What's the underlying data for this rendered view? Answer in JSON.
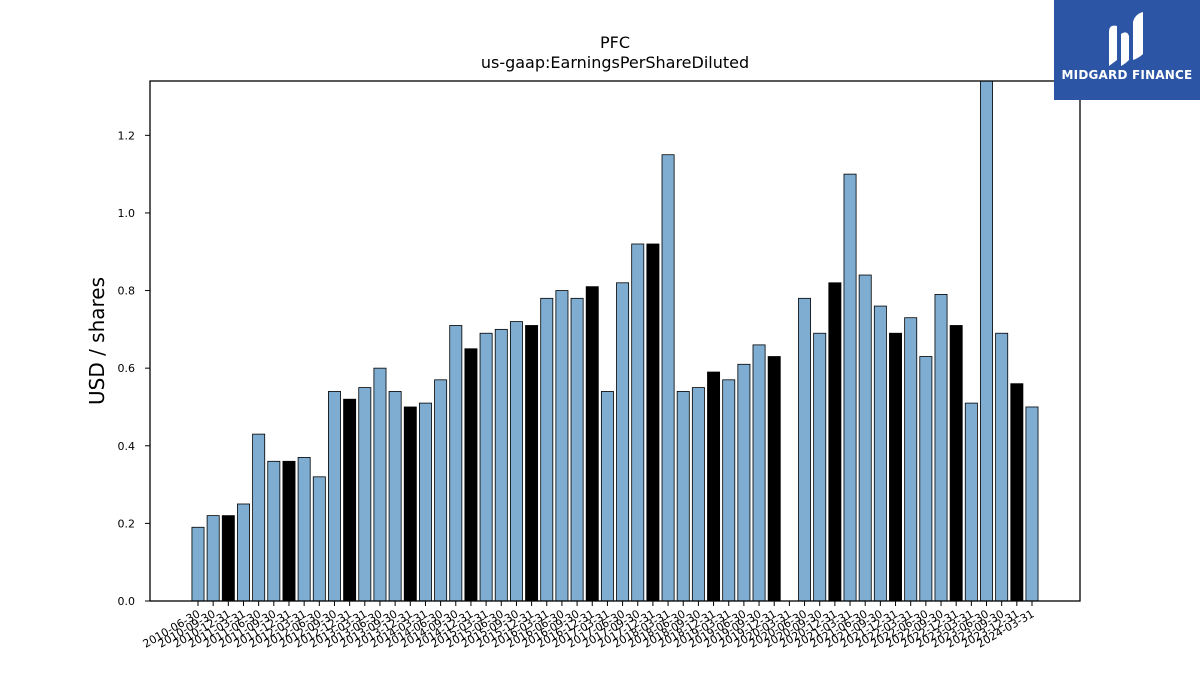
{
  "chart_data": {
    "type": "bar",
    "title": "PFC",
    "subtitle": "us-gaap:EarningsPerShareDiluted",
    "xlabel": "",
    "ylabel": "USD / shares",
    "ylim": [
      0,
      1.34
    ],
    "yticks": [
      "0.0",
      "0.2",
      "0.4",
      "0.6",
      "0.8",
      "1.0",
      "1.2"
    ],
    "grid": false,
    "legend": "none",
    "colors": {
      "quarter": "#7eadd1",
      "annual": "#000000"
    },
    "categories": [
      "2010-06-30",
      "2010-09-30",
      "2010-12-31",
      "2011-03-31",
      "2011-06-30",
      "2011-09-30",
      "2011-12-31",
      "2012-03-31",
      "2012-06-30",
      "2012-09-30",
      "2012-12-31",
      "2013-03-31",
      "2013-06-30",
      "2013-09-30",
      "2013-12-31",
      "2014-03-31",
      "2014-06-30",
      "2014-09-30",
      "2014-12-31",
      "2015-03-31",
      "2015-06-30",
      "2015-09-30",
      "2015-12-31",
      "2016-03-31",
      "2016-06-30",
      "2016-09-30",
      "2016-12-31",
      "2017-03-31",
      "2017-06-30",
      "2017-09-30",
      "2017-12-31",
      "2018-03-31",
      "2018-06-30",
      "2018-09-30",
      "2018-12-31",
      "2019-03-31",
      "2019-06-30",
      "2019-09-30",
      "2019-12-31",
      "2020-03-31",
      "2020-06-30",
      "2020-09-30",
      "2020-12-31",
      "2021-03-31",
      "2021-06-30",
      "2021-09-30",
      "2021-12-31",
      "2022-03-31",
      "2022-06-30",
      "2022-09-30",
      "2022-12-31",
      "2023-03-31",
      "2023-06-30",
      "2023-09-30",
      "2023-12-31",
      "2024-03-31"
    ],
    "values": [
      0.19,
      0.22,
      0.22,
      0.25,
      0.43,
      0.36,
      0.36,
      0.37,
      0.32,
      0.54,
      0.52,
      0.55,
      0.6,
      0.54,
      0.5,
      0.51,
      0.57,
      0.71,
      0.65,
      0.69,
      0.7,
      0.72,
      0.71,
      0.78,
      0.8,
      0.78,
      0.81,
      0.54,
      0.82,
      0.92,
      0.92,
      1.15,
      0.54,
      0.55,
      0.59,
      0.57,
      0.61,
      0.66,
      0.63,
      null,
      0.78,
      0.69,
      0.82,
      1.1,
      0.84,
      0.76,
      0.69,
      0.73,
      0.63,
      0.79,
      0.71,
      0.51,
      1.34,
      0.69,
      0.56,
      0.5
    ],
    "annual": [
      false,
      false,
      true,
      false,
      false,
      false,
      true,
      false,
      false,
      false,
      true,
      false,
      false,
      false,
      true,
      false,
      false,
      false,
      true,
      false,
      false,
      false,
      true,
      false,
      false,
      false,
      true,
      false,
      false,
      false,
      true,
      false,
      false,
      false,
      true,
      false,
      false,
      false,
      true,
      false,
      false,
      false,
      true,
      false,
      false,
      false,
      true,
      false,
      false,
      false,
      true,
      false,
      false,
      false,
      true,
      false
    ]
  },
  "logo": {
    "text": "MIDGARD FINANCE"
  }
}
